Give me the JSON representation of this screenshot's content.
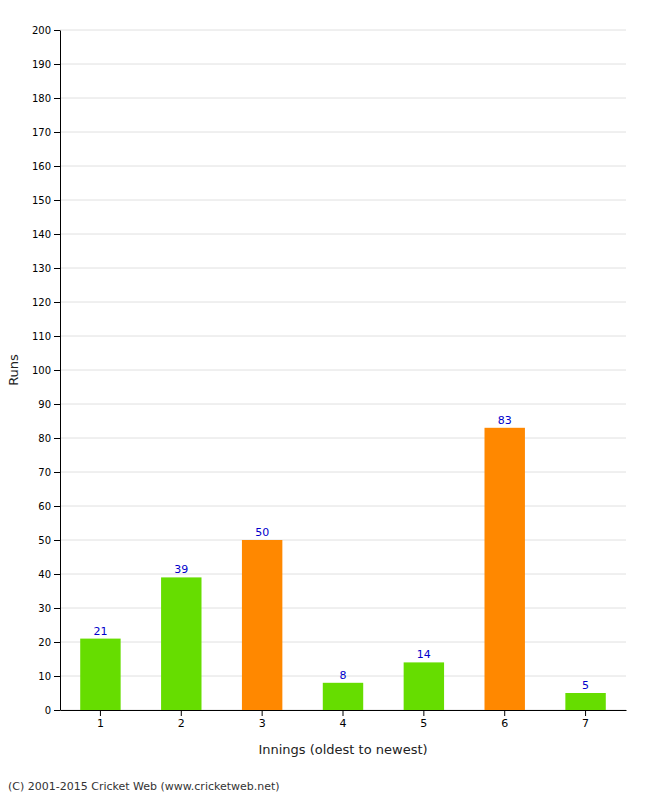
{
  "chart_data": {
    "type": "bar",
    "categories": [
      "1",
      "2",
      "3",
      "4",
      "5",
      "6",
      "7"
    ],
    "values": [
      21,
      39,
      50,
      8,
      14,
      83,
      5
    ],
    "colors": [
      "#66dd00",
      "#66dd00",
      "#ff8800",
      "#66dd00",
      "#66dd00",
      "#ff8800",
      "#66dd00"
    ],
    "x_label": "Innings (oldest to newest)",
    "y_label": "Runs",
    "ylim": [
      0,
      200
    ],
    "yticks": [
      0,
      10,
      20,
      30,
      40,
      50,
      60,
      70,
      80,
      90,
      100,
      110,
      120,
      130,
      140,
      150,
      160,
      170,
      180,
      190,
      200
    ],
    "grid": true,
    "data_labels": true,
    "annotations": [
      "(C) 2001-2015 Cricket Web (www.cricketweb.net)"
    ]
  }
}
